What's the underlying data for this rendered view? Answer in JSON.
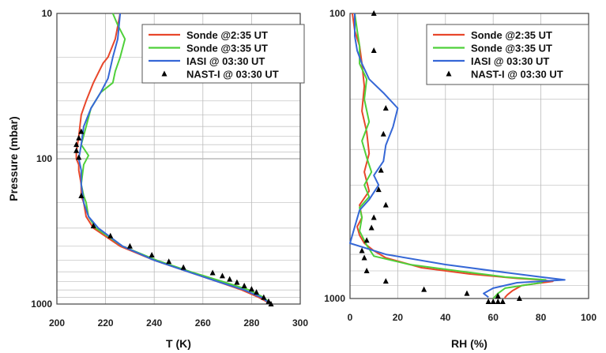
{
  "chart_data": [
    {
      "type": "line",
      "xlabel": "T (K)",
      "ylabel": "Pressure (mbar)",
      "xlim": [
        200,
        300
      ],
      "ylim": [
        10,
        1000
      ],
      "y_scale": "log",
      "y_inverted": true,
      "grid": true,
      "legend_position": "top-right",
      "x_ticks": [
        "200",
        "220",
        "240",
        "260",
        "280",
        "300"
      ],
      "y_ticks": [
        "10",
        "100",
        "1000"
      ],
      "series": [
        {
          "name": "Sonde @2:35 UT",
          "color": "#e8472b",
          "style": "line",
          "x": [
            288,
            283,
            276,
            266,
            254,
            240,
            226,
            215,
            212,
            211,
            210,
            210,
            209,
            209,
            208,
            208,
            209,
            210,
            212,
            215,
            219,
            221,
            224,
            226
          ],
          "y": [
            1000,
            900,
            800,
            700,
            600,
            500,
            400,
            300,
            250,
            200,
            180,
            150,
            120,
            110,
            100,
            90,
            70,
            50,
            40,
            30,
            22,
            20,
            15,
            10
          ]
        },
        {
          "name": "Sonde @3:35 UT",
          "color": "#4fd03a",
          "style": "line",
          "x": [
            288,
            285,
            279,
            268,
            255,
            241,
            227,
            216,
            213,
            212,
            211,
            210,
            211,
            213,
            210,
            212,
            214,
            218,
            223,
            224,
            226,
            228,
            225,
            223
          ],
          "y": [
            1000,
            900,
            800,
            700,
            600,
            500,
            400,
            300,
            250,
            200,
            180,
            150,
            110,
            95,
            80,
            60,
            45,
            35,
            30,
            25,
            20,
            15,
            12,
            10
          ]
        },
        {
          "name": "IASI @ 03:30 UT",
          "color": "#3567d6",
          "style": "line",
          "x": [
            288,
            284,
            277,
            266,
            254,
            240,
            227,
            217,
            213,
            211,
            210,
            210,
            209,
            210,
            211,
            214,
            218,
            221,
            223,
            225,
            226
          ],
          "y": [
            1000,
            900,
            800,
            700,
            600,
            500,
            400,
            300,
            250,
            200,
            150,
            120,
            100,
            80,
            60,
            45,
            35,
            28,
            20,
            15,
            10
          ]
        },
        {
          "name": "NAST-I @ 03:30 UT",
          "color": "#000000",
          "style": "marker",
          "x": [
            288,
            287,
            285,
            282,
            280,
            277,
            274,
            271,
            268,
            264,
            252,
            246,
            239,
            230,
            222,
            215,
            210,
            209,
            208,
            208,
            209,
            210
          ],
          "y": [
            1000,
            960,
            900,
            830,
            790,
            750,
            710,
            675,
            640,
            610,
            560,
            510,
            460,
            400,
            340,
            290,
            180,
            98,
            88,
            80,
            72,
            65
          ]
        }
      ]
    },
    {
      "type": "line",
      "xlabel": "RH (%)",
      "ylabel": "",
      "xlim": [
        0,
        100
      ],
      "ylim": [
        100,
        1000
      ],
      "y_scale": "log",
      "y_inverted": true,
      "grid": true,
      "legend_position": "top-right",
      "x_ticks": [
        "0",
        "20",
        "40",
        "60",
        "80",
        "100"
      ],
      "y_ticks": [
        "100",
        "1000"
      ],
      "series": [
        {
          "name": "Sonde @2:35 UT",
          "color": "#e8472b",
          "style": "line",
          "x": [
            1,
            2,
            4,
            5,
            6,
            5,
            7,
            8,
            6,
            8,
            4,
            5,
            3,
            4,
            6,
            10,
            15,
            30,
            50,
            70,
            80,
            85,
            72,
            68,
            66,
            65,
            65
          ],
          "y": [
            100,
            115,
            130,
            150,
            180,
            220,
            260,
            310,
            360,
            420,
            470,
            520,
            560,
            600,
            640,
            680,
            720,
            780,
            820,
            850,
            860,
            870,
            900,
            940,
            970,
            990,
            1000
          ]
        },
        {
          "name": "Sonde @3:35 UT",
          "color": "#4fd03a",
          "style": "line",
          "x": [
            2,
            3,
            4,
            4,
            7,
            6,
            8,
            5,
            7,
            9,
            6,
            8,
            4,
            5,
            4,
            7,
            10,
            25,
            45,
            65,
            82,
            80,
            65,
            62,
            60
          ],
          "y": [
            100,
            115,
            130,
            150,
            170,
            200,
            240,
            280,
            320,
            360,
            400,
            440,
            480,
            520,
            580,
            650,
            710,
            760,
            800,
            840,
            860,
            880,
            920,
            960,
            1000
          ]
        },
        {
          "name": "IASI @ 03:30 UT",
          "color": "#3567d6",
          "style": "line",
          "x": [
            2,
            2,
            3,
            5,
            8,
            14,
            20,
            18,
            15,
            14,
            10,
            12,
            8,
            4,
            2,
            0,
            15,
            40,
            65,
            80,
            90,
            70,
            60,
            56,
            58
          ],
          "y": [
            100,
            120,
            135,
            150,
            170,
            190,
            215,
            250,
            290,
            330,
            370,
            400,
            450,
            490,
            560,
            640,
            700,
            760,
            810,
            840,
            860,
            880,
            920,
            960,
            990
          ]
        },
        {
          "name": "NAST-I @ 03:30 UT",
          "color": "#000000",
          "style": "marker",
          "x": [
            10,
            10,
            15,
            14,
            13,
            12,
            15,
            10,
            9,
            7,
            5,
            6,
            7,
            15,
            31,
            49,
            62,
            71,
            64,
            62,
            60,
            58
          ],
          "y": [
            100,
            135,
            215,
            265,
            355,
            415,
            470,
            520,
            565,
            625,
            680,
            720,
            800,
            870,
            930,
            960,
            980,
            1000,
            1040,
            1060,
            1070,
            1080
          ]
        }
      ]
    }
  ]
}
